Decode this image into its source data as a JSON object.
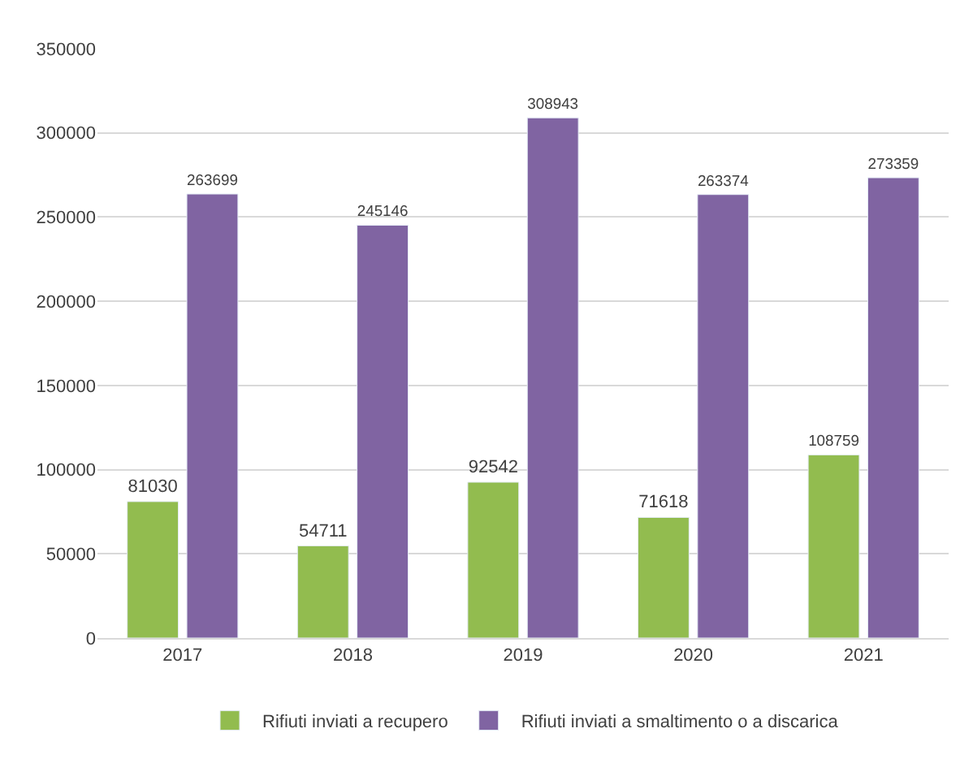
{
  "chart_data": {
    "type": "bar",
    "categories": [
      "2017",
      "2018",
      "2019",
      "2020",
      "2021"
    ],
    "series": [
      {
        "name": "Rifiuti inviati a recupero",
        "color": "#92bc4f",
        "values": [
          81030,
          54711,
          92542,
          71618,
          108759
        ]
      },
      {
        "name": "Rifiuti inviati a smaltimento o a discarica",
        "color": "#8064a2",
        "values": [
          263699,
          245146,
          308943,
          263374,
          273359
        ]
      }
    ],
    "ylim": [
      0,
      350000
    ],
    "yticks": [
      0,
      50000,
      100000,
      150000,
      200000,
      250000,
      300000,
      350000
    ],
    "grid": "y",
    "legend": "bottom",
    "data_labels": true
  }
}
